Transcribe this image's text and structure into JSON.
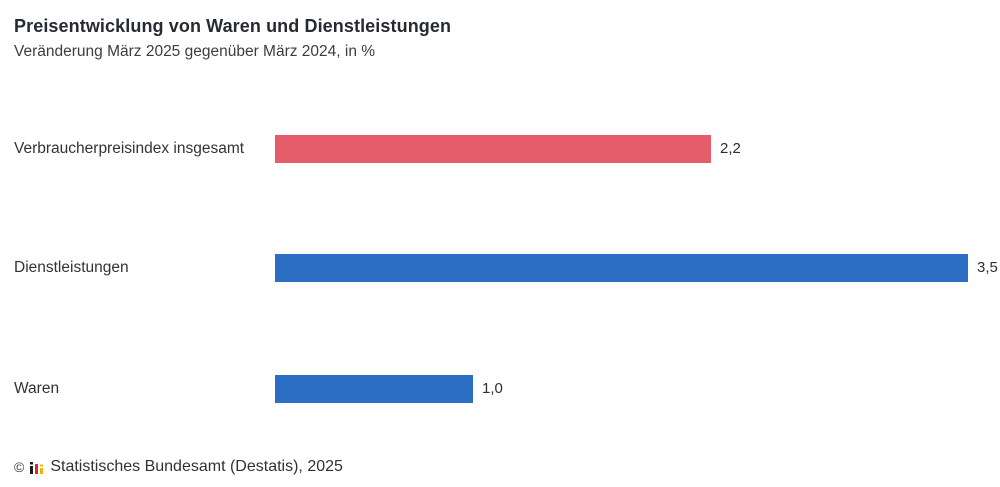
{
  "chart_data": {
    "type": "bar",
    "orientation": "horizontal",
    "title": "Preisentwicklung von Waren und Dienstleistungen",
    "subtitle": "Veränderung März 2025 gegenüber März 2024, in %",
    "categories": [
      "Verbraucherpreisindex insgesamt",
      "Dienstleistungen",
      "Waren"
    ],
    "values": [
      2.2,
      3.5,
      1.0
    ],
    "value_labels": [
      "2,2",
      "3,5",
      "1,0"
    ],
    "bar_colors": [
      "#e55c6b",
      "#2b6ec4",
      "#2b6ec4"
    ],
    "xlim": [
      0,
      3.5
    ],
    "grid": false,
    "legend": false,
    "unit": "%"
  },
  "footer": {
    "copyright_symbol": "©",
    "source_label": "Statistisches Bundesamt (Destatis), 2025",
    "logo_icon": "destatis-bars-icon",
    "logo_colors": [
      "#1a1a1a",
      "#d62839",
      "#f0b400"
    ]
  }
}
